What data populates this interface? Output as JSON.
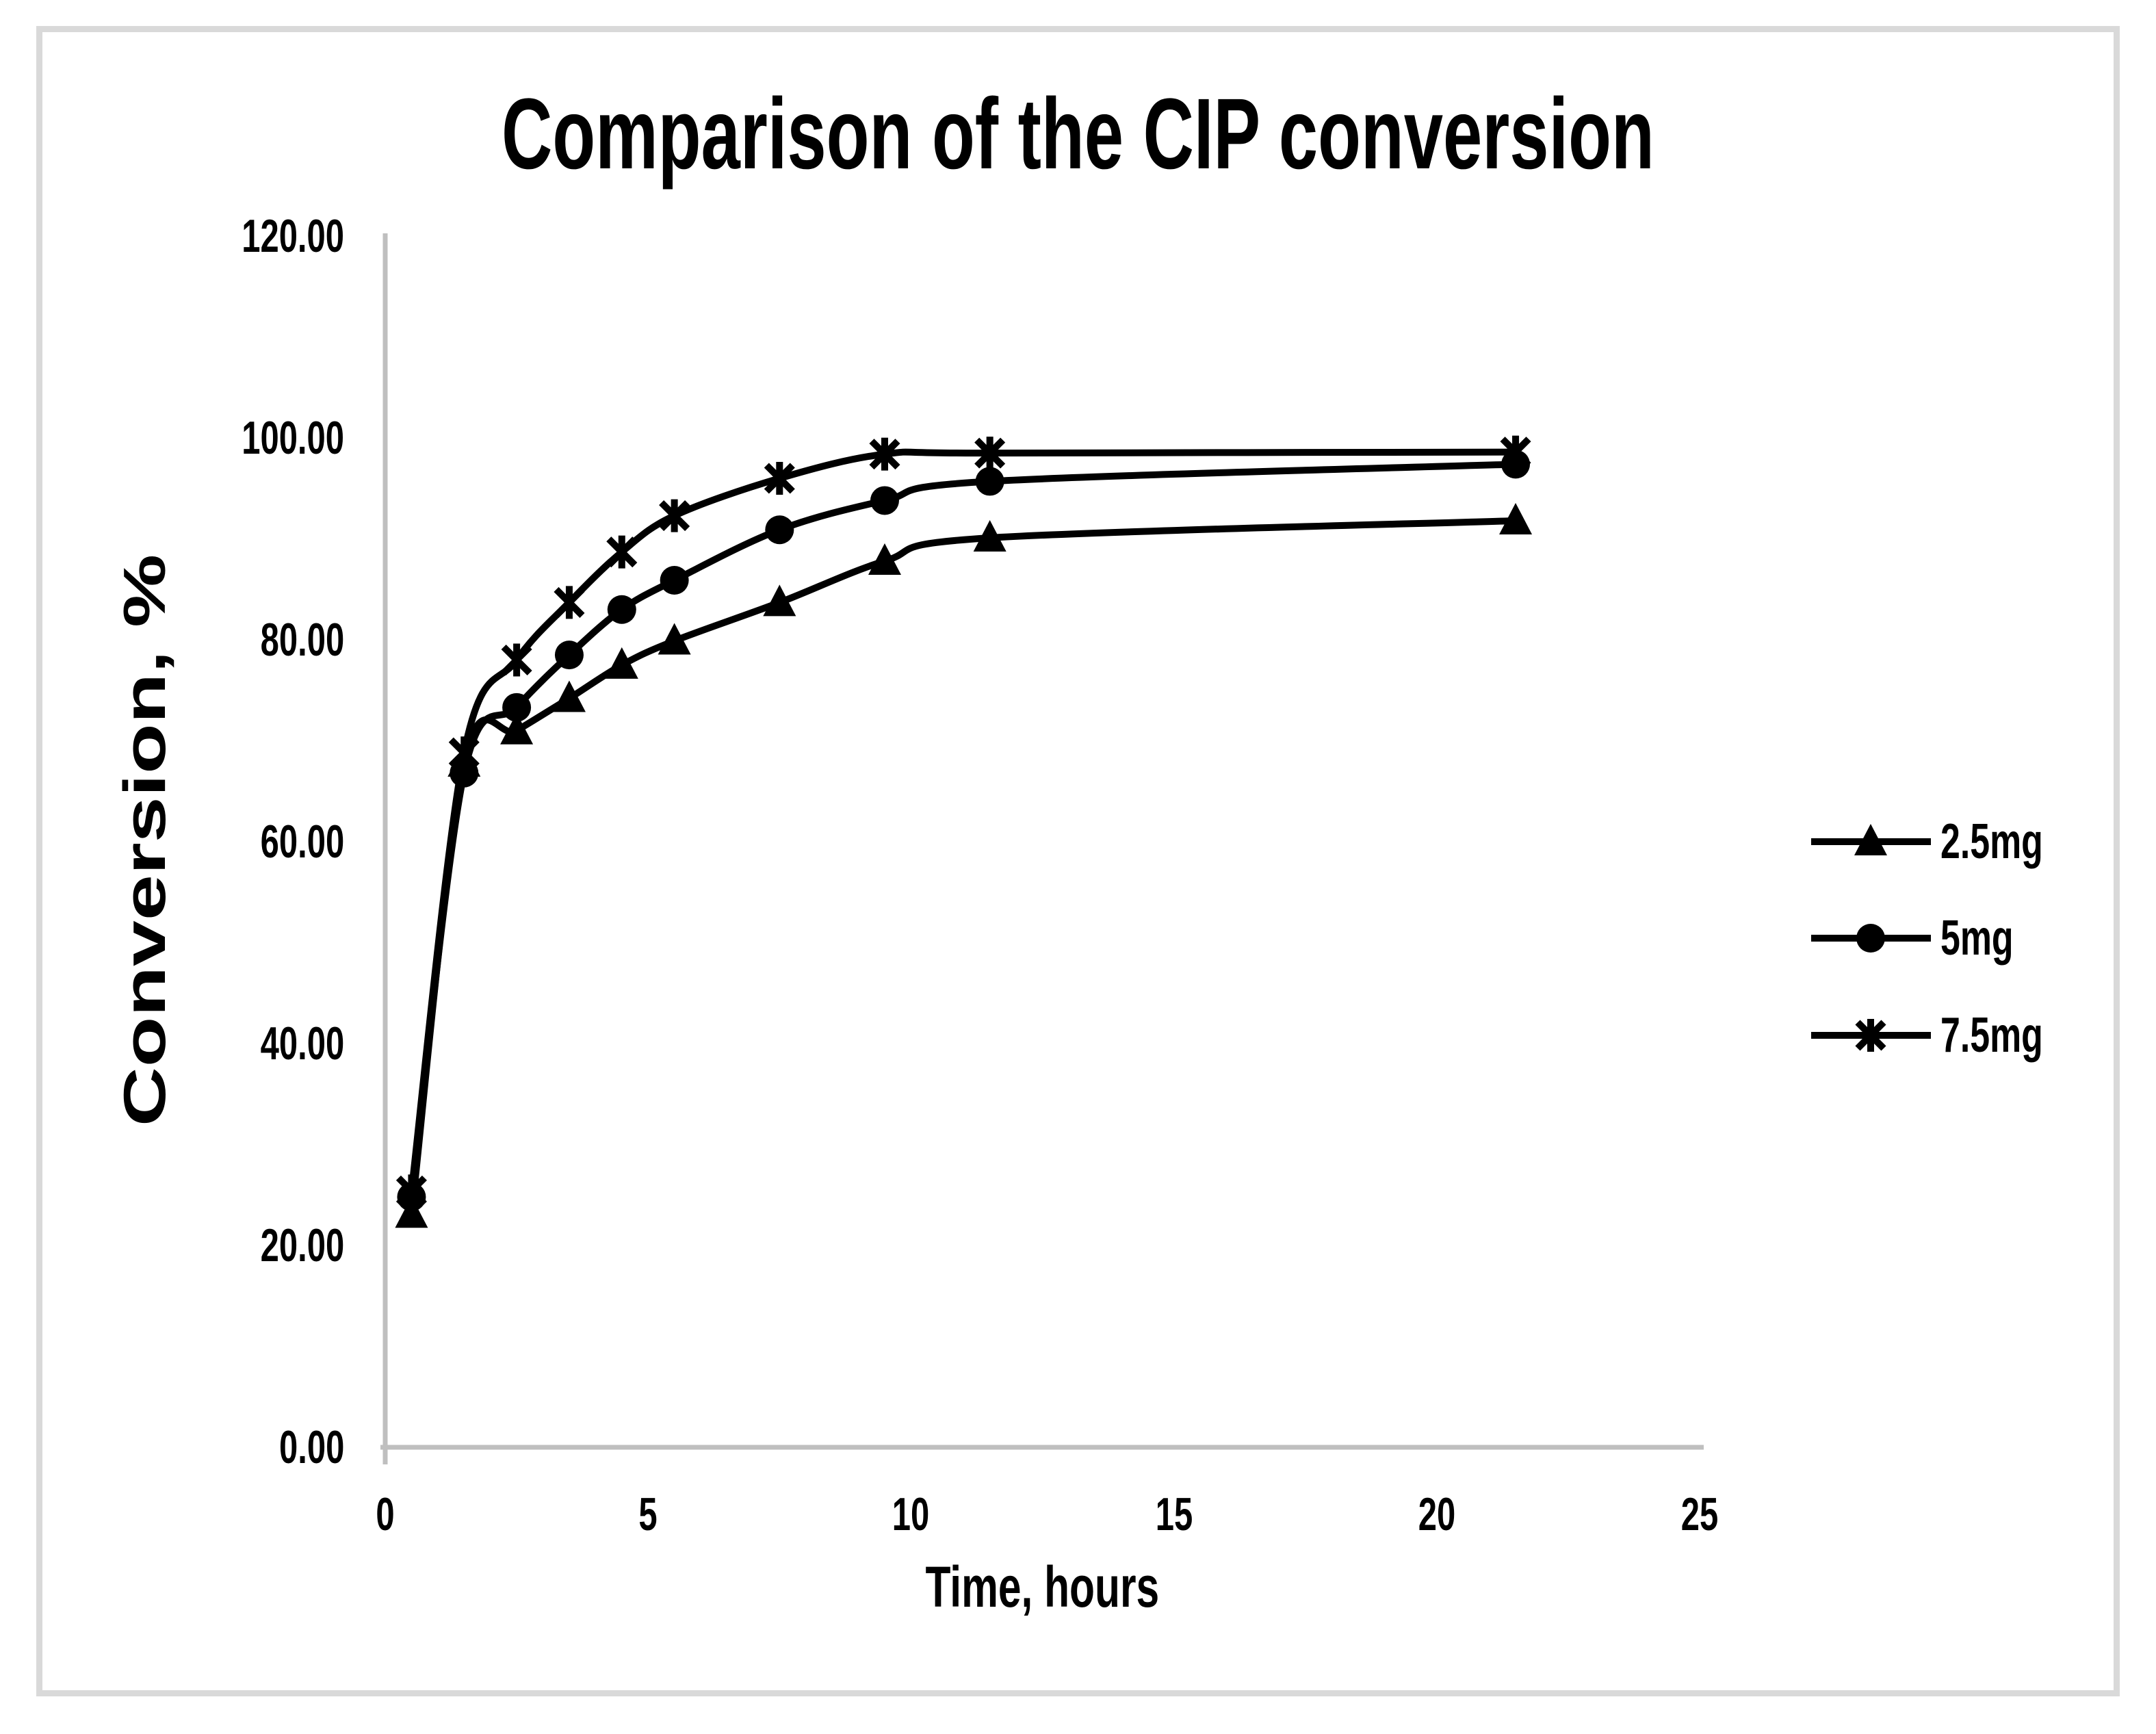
{
  "title": "Comparison of the CIP conversion",
  "axes": {
    "x": {
      "title": "Time, hours",
      "min": 0,
      "max": 25,
      "tick_step": 5,
      "tick_labels": [
        "0",
        "5",
        "10",
        "15",
        "20",
        "25"
      ]
    },
    "y": {
      "title": "Conversion, %",
      "min": 0,
      "max": 120,
      "tick_step": 20,
      "tick_labels": [
        "0.00",
        "20.00",
        "40.00",
        "60.00",
        "80.00",
        "100.00",
        "120.00"
      ]
    }
  },
  "legend": {
    "position": "right",
    "entries": [
      {
        "label": "2.5mg",
        "marker": "triangle"
      },
      {
        "label": "5mg",
        "marker": "circle"
      },
      {
        "label": "7.5mg",
        "marker": "asterisk"
      }
    ]
  },
  "colors": {
    "series": "#000000",
    "text": "#000000",
    "axis_line": "#bfbfbf",
    "chart_border": "#d9d9d9",
    "background": "#ffffff"
  },
  "chart_data": {
    "type": "line",
    "title": "Comparison of the CIP conversion",
    "xlabel": "Time, hours",
    "ylabel": "Conversion, %",
    "xlim": [
      0,
      25
    ],
    "ylim": [
      0,
      120
    ],
    "grid": false,
    "legend_position": "right",
    "smooth_lines": true,
    "x": [
      0.5,
      1.5,
      2.5,
      3.5,
      4.5,
      5.5,
      7.5,
      9.5,
      11.5,
      21.5
    ],
    "series": [
      {
        "name": "2.5mg",
        "marker": "triangle",
        "values": [
          23.1,
          67.8,
          71.0,
          74.2,
          77.5,
          79.9,
          83.7,
          87.8,
          90.1,
          91.8
        ]
      },
      {
        "name": "5mg",
        "marker": "circle",
        "values": [
          24.8,
          66.8,
          73.3,
          78.5,
          83.0,
          85.9,
          90.9,
          93.8,
          95.7,
          97.4
        ]
      },
      {
        "name": "7.5mg",
        "marker": "asterisk",
        "values": [
          25.4,
          68.8,
          78.0,
          83.7,
          88.7,
          92.3,
          96.0,
          98.4,
          98.5,
          98.6
        ]
      }
    ]
  }
}
